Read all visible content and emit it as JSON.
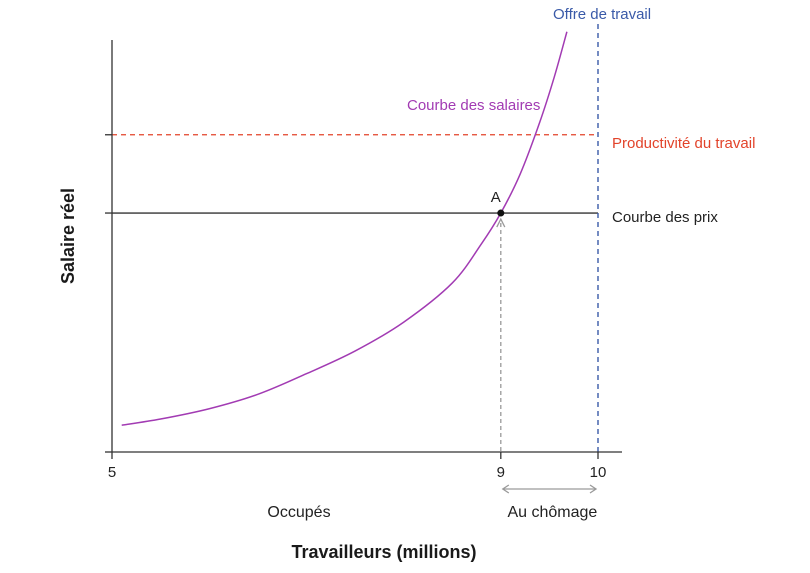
{
  "chart_data": {
    "type": "line",
    "xlabel": "Travailleurs (millions)",
    "ylabel": "Salaire réel",
    "xlim": [
      5,
      10
    ],
    "ylim": [
      0,
      1
    ],
    "x_ticks": [
      5,
      9,
      10
    ],
    "x_tick_labels": [
      "5",
      "9",
      "10"
    ],
    "y_ticks_unlabeled": [
      0.4,
      0.6
    ],
    "grid": false,
    "series": [
      {
        "name": "Courbe des salaires",
        "color": "#a23bb3",
        "style": "solid",
        "points": [
          [
            5.1,
            0.065
          ],
          [
            5.5,
            0.08
          ],
          [
            6.0,
            0.105
          ],
          [
            6.5,
            0.14
          ],
          [
            7.0,
            0.19
          ],
          [
            7.5,
            0.245
          ],
          [
            8.0,
            0.315
          ],
          [
            8.5,
            0.41
          ],
          [
            8.8,
            0.505
          ],
          [
            9.0,
            0.58
          ],
          [
            9.2,
            0.675
          ],
          [
            9.4,
            0.8
          ],
          [
            9.55,
            0.91
          ],
          [
            9.68,
            1.02
          ]
        ]
      },
      {
        "name": "Courbe des prix",
        "color": "#333333",
        "style": "solid",
        "y": 0.58
      },
      {
        "name": "Productivité du travail",
        "color": "#e2432a",
        "style": "dashed",
        "y": 0.77
      },
      {
        "name": "Offre de travail",
        "color": "#3a5aa8",
        "style": "dashed",
        "x": 10
      }
    ],
    "annotations": [
      {
        "text": "A",
        "x": 9,
        "y": 0.58
      },
      {
        "text": "Occupés",
        "from_x": 5,
        "to_x": 9
      },
      {
        "text": "Au chômage",
        "from_x": 9,
        "to_x": 10
      }
    ]
  }
}
